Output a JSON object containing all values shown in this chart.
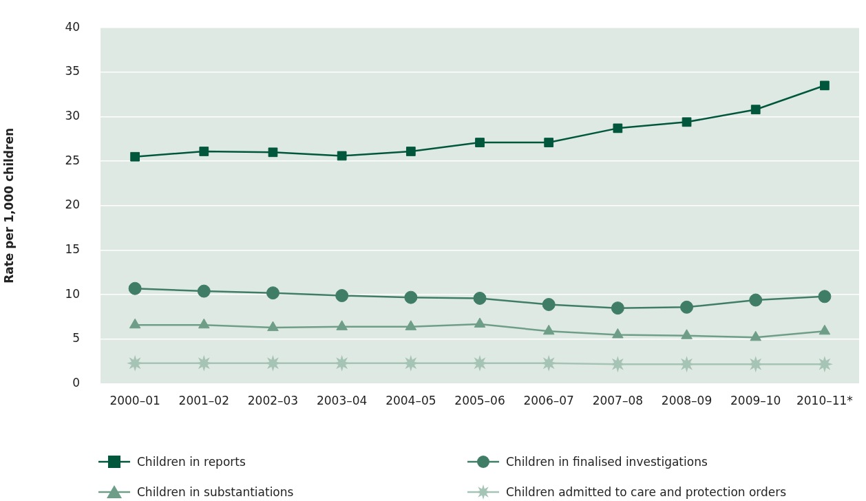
{
  "chart_data": {
    "type": "line",
    "ylabel": "Rate per 1,000 children",
    "categories": [
      "2000–01",
      "2001–02",
      "2002–03",
      "2003–04",
      "2004–05",
      "2005–06",
      "2006–07",
      "2007–08",
      "2008–09",
      "2009–10",
      "2010–11*"
    ],
    "series": [
      {
        "name": "Children in reports",
        "color": "#00573c",
        "marker": "square",
        "values": [
          25.5,
          26.1,
          26.0,
          25.6,
          26.1,
          27.1,
          27.1,
          28.7,
          29.4,
          30.8,
          33.5
        ]
      },
      {
        "name": "Children in finalised investigations",
        "color": "#3f7d66",
        "marker": "circle",
        "values": [
          10.7,
          10.4,
          10.2,
          9.9,
          9.7,
          9.6,
          8.9,
          8.5,
          8.6,
          9.4,
          9.8
        ]
      },
      {
        "name": "Children in substantiations",
        "color": "#6f9e88",
        "marker": "triangle",
        "values": [
          6.6,
          6.6,
          6.3,
          6.4,
          6.4,
          6.7,
          5.9,
          5.5,
          5.4,
          5.2,
          5.9
        ]
      },
      {
        "name": "Children admitted to care and protection orders",
        "color": "#a5c4b5",
        "marker": "star",
        "values": [
          2.3,
          2.3,
          2.3,
          2.3,
          2.3,
          2.3,
          2.3,
          2.2,
          2.2,
          2.2,
          2.2
        ]
      }
    ],
    "ylim": [
      0,
      40
    ],
    "yticks": [
      0,
      5,
      10,
      15,
      20,
      25,
      30,
      35,
      40
    ],
    "grid": "y",
    "legend": "bottom",
    "line_style": "solid"
  }
}
